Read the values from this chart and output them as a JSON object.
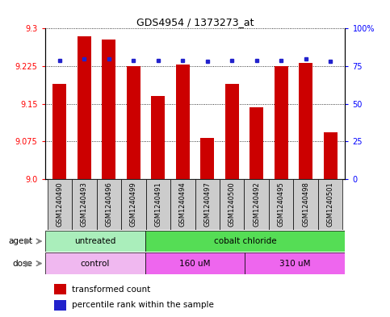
{
  "title": "GDS4954 / 1373273_at",
  "samples": [
    "GSM1240490",
    "GSM1240493",
    "GSM1240496",
    "GSM1240499",
    "GSM1240491",
    "GSM1240494",
    "GSM1240497",
    "GSM1240500",
    "GSM1240492",
    "GSM1240495",
    "GSM1240498",
    "GSM1240501"
  ],
  "bar_values": [
    9.19,
    9.285,
    9.278,
    9.225,
    9.165,
    9.228,
    9.082,
    9.19,
    9.143,
    9.225,
    9.232,
    9.093
  ],
  "percentile_values": [
    79,
    80,
    80,
    79,
    79,
    79,
    78,
    79,
    79,
    79,
    80,
    78
  ],
  "bar_color": "#cc0000",
  "percentile_color": "#2222cc",
  "ylim_left": [
    9.0,
    9.3
  ],
  "ylim_right": [
    0,
    100
  ],
  "yticks_left": [
    9.0,
    9.075,
    9.15,
    9.225,
    9.3
  ],
  "yticks_right": [
    0,
    25,
    50,
    75,
    100
  ],
  "ytick_labels_right": [
    "0",
    "25",
    "50",
    "75",
    "100%"
  ],
  "agent_groups": [
    {
      "label": "untreated",
      "start": 0,
      "end": 4,
      "color": "#aaeebb"
    },
    {
      "label": "cobalt chloride",
      "start": 4,
      "end": 12,
      "color": "#55dd55"
    }
  ],
  "dose_groups": [
    {
      "label": "control",
      "start": 0,
      "end": 4,
      "color": "#f0b8f0"
    },
    {
      "label": "160 uM",
      "start": 4,
      "end": 8,
      "color": "#ee66ee"
    },
    {
      "label": "310 uM",
      "start": 8,
      "end": 12,
      "color": "#ee66ee"
    }
  ],
  "legend_bar_label": "transformed count",
  "legend_percentile_label": "percentile rank within the sample",
  "agent_label": "agent",
  "dose_label": "dose",
  "background_color": "#ffffff",
  "xtick_bg_color": "#cccccc",
  "bar_width": 0.55
}
